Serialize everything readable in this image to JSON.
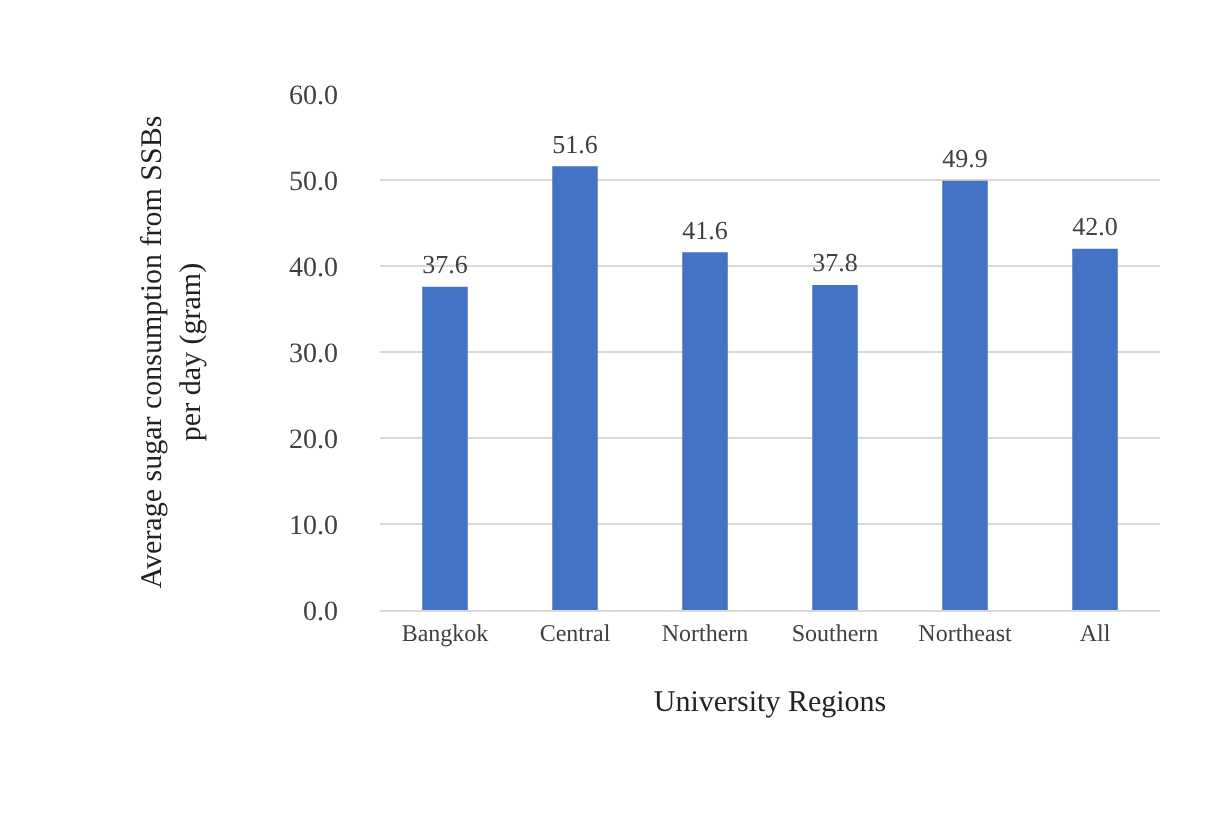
{
  "chart_data": {
    "type": "bar",
    "xlabel": "University Regions",
    "ylabel": "Average sugar consumption from SSBs per day (gram)",
    "categories": [
      "Bangkok",
      "Central",
      "Northern",
      "Southern",
      "Northeast",
      "All"
    ],
    "values": [
      37.6,
      51.6,
      41.6,
      37.8,
      49.9,
      42.0
    ],
    "value_labels": [
      "37.6",
      "51.6",
      "41.6",
      "37.8",
      "49.9",
      "42.0"
    ],
    "color": "#4472c4",
    "ylim": [
      0,
      60
    ],
    "yticks": [
      {
        "value": 0,
        "label": "0.0"
      },
      {
        "value": 10,
        "label": "10.0"
      },
      {
        "value": 20,
        "label": "20.0"
      },
      {
        "value": 30,
        "label": "30.0"
      },
      {
        "value": 40,
        "label": "40.0"
      },
      {
        "value": 50,
        "label": "50.0"
      },
      {
        "value": 60,
        "label": "60.0"
      }
    ],
    "grid": "y"
  }
}
